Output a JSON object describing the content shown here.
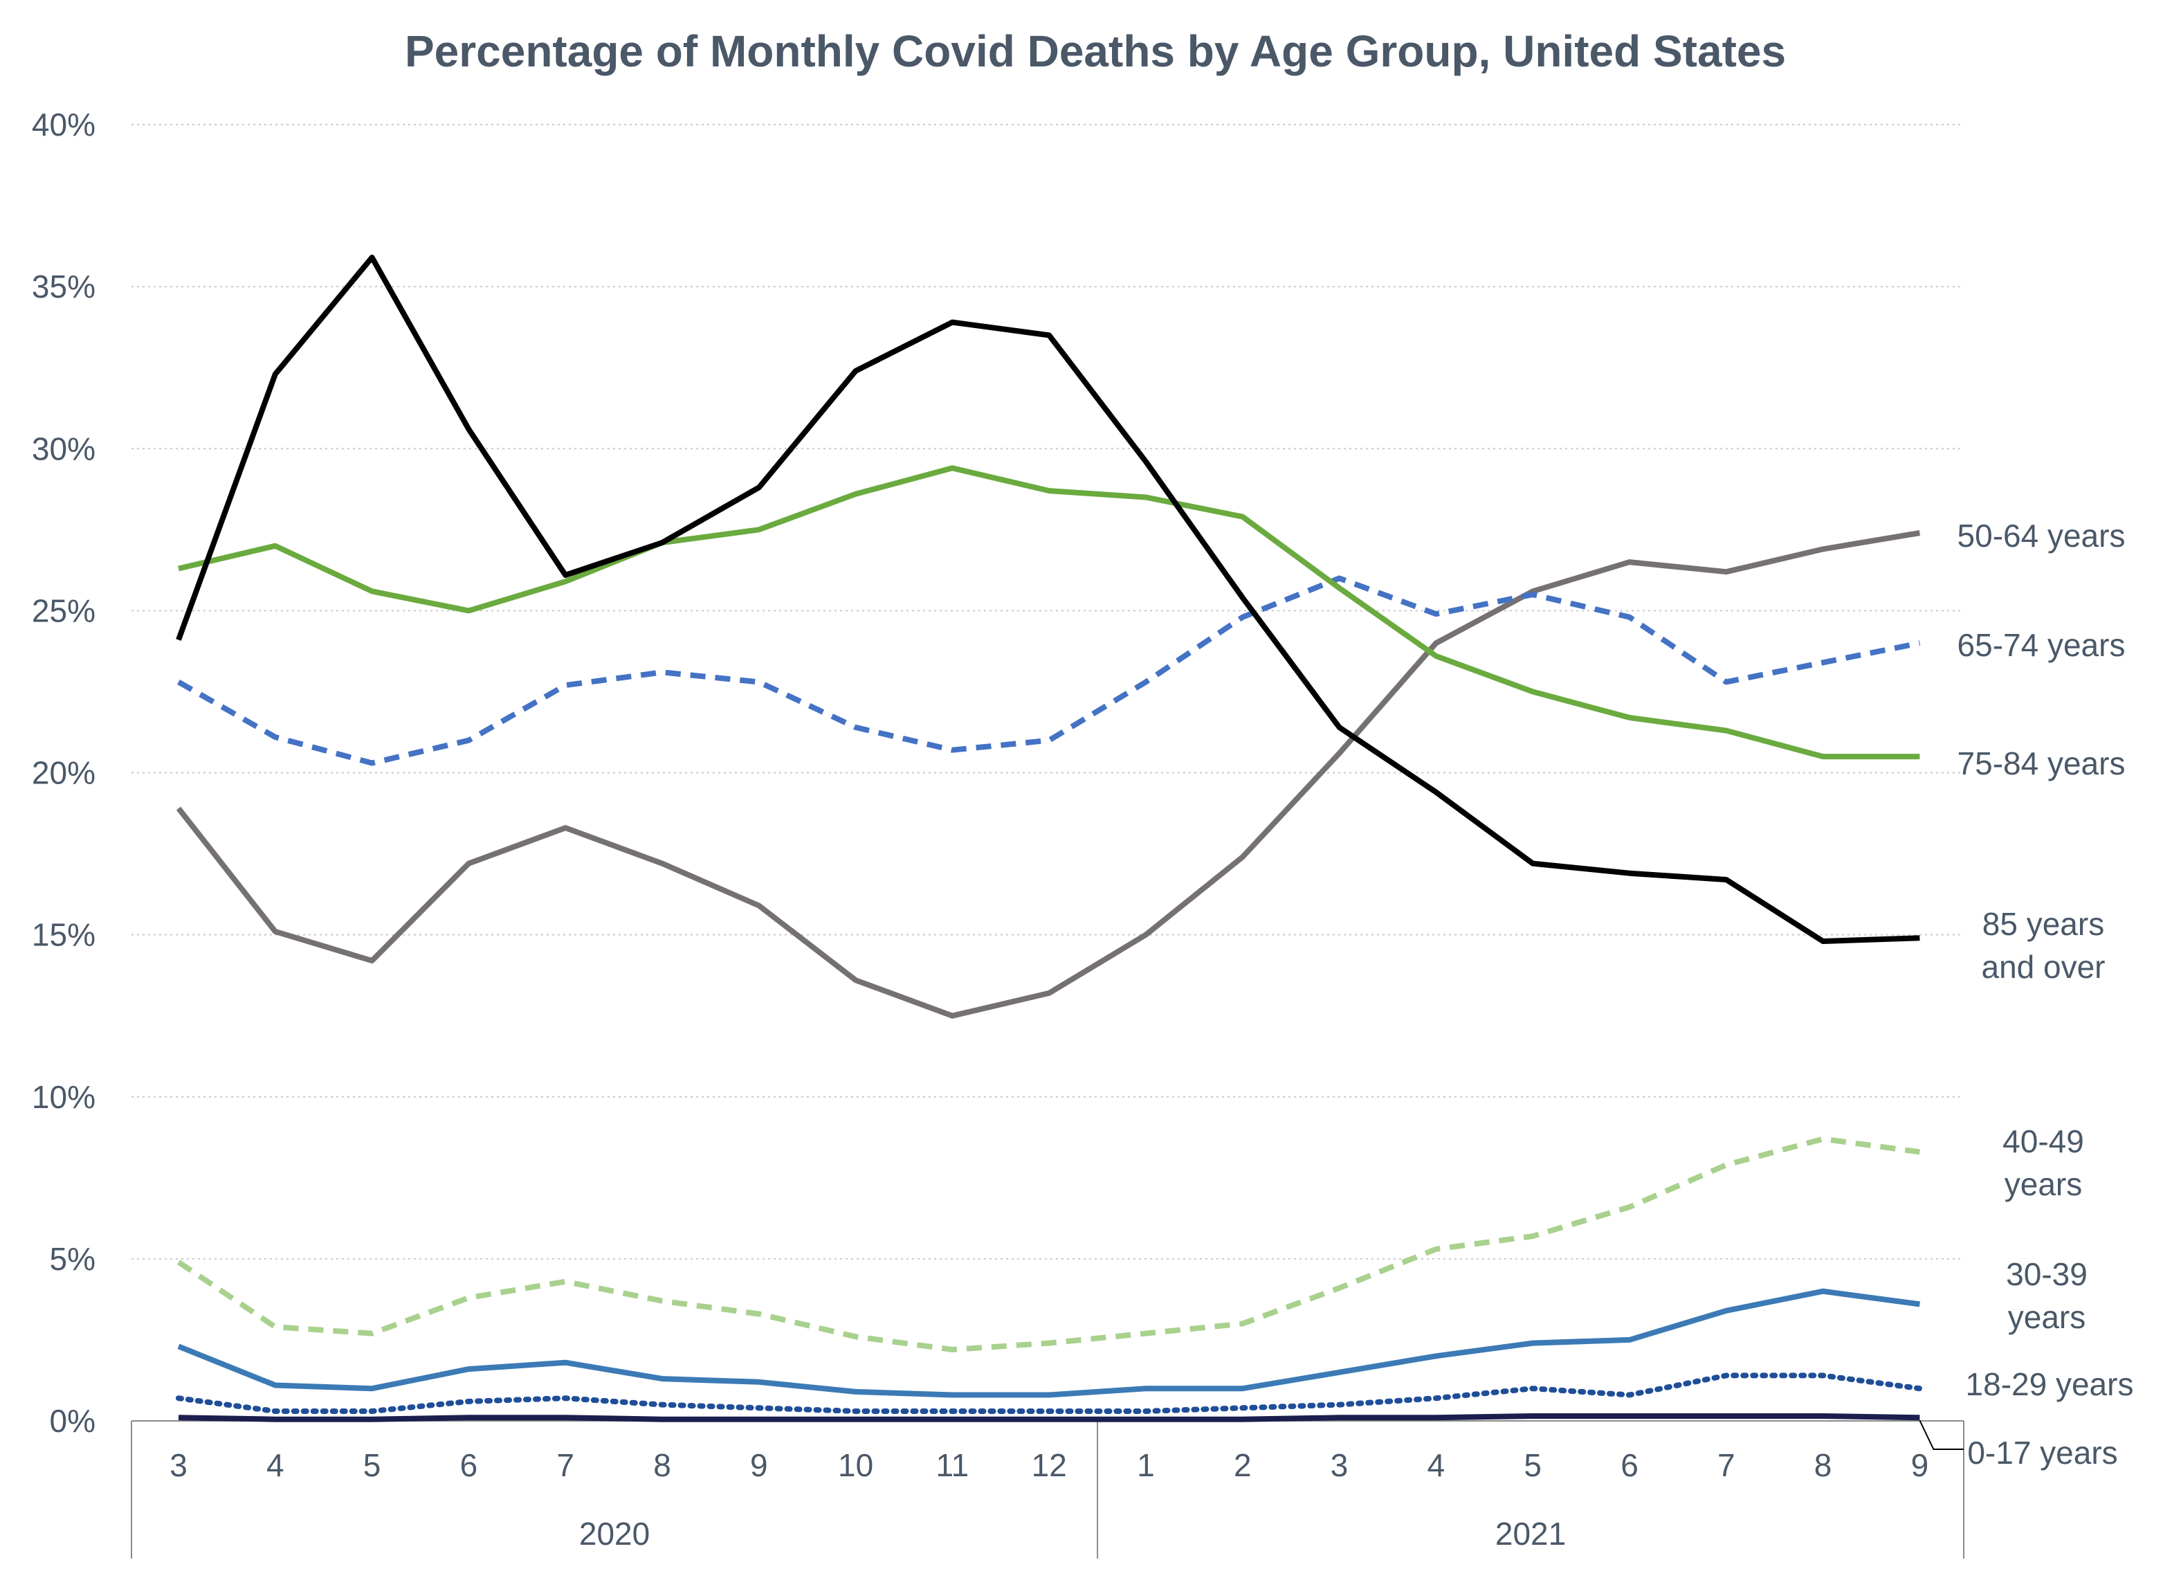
{
  "chart_data": {
    "type": "line",
    "title": "Percentage of Monthly Covid Deaths by Age Group, United States",
    "xlabel": "",
    "ylabel": "",
    "ylim": [
      0,
      40
    ],
    "yticks": [
      "0%",
      "5%",
      "10%",
      "15%",
      "20%",
      "25%",
      "30%",
      "35%",
      "40%"
    ],
    "grid": true,
    "legend": "labels at right end of lines",
    "categories": [
      "3",
      "4",
      "5",
      "6",
      "7",
      "8",
      "9",
      "10",
      "11",
      "12",
      "1",
      "2",
      "3",
      "4",
      "5",
      "6",
      "7",
      "8",
      "9"
    ],
    "year_groups": [
      {
        "label": "2020",
        "count": 10
      },
      {
        "label": "2021",
        "count": 9
      }
    ],
    "series": [
      {
        "name": "85 years and over",
        "label_lines": [
          "85 years",
          "and over"
        ],
        "color": "#000000",
        "dash": "solid",
        "values": [
          24.1,
          32.3,
          35.9,
          30.6,
          26.1,
          27.1,
          28.8,
          32.4,
          33.9,
          33.5,
          29.6,
          25.4,
          21.4,
          19.4,
          17.2,
          16.9,
          16.7,
          14.8,
          14.9
        ]
      },
      {
        "name": "75-84 years",
        "label_lines": [
          "75-84 years"
        ],
        "color": "#6aaa3f",
        "dash": "solid",
        "values": [
          26.3,
          27.0,
          25.6,
          25.0,
          25.9,
          27.1,
          27.5,
          28.6,
          29.4,
          28.7,
          28.5,
          27.9,
          25.7,
          23.6,
          22.5,
          21.7,
          21.3,
          20.5,
          20.5
        ]
      },
      {
        "name": "65-74 years",
        "label_lines": [
          "65-74 years"
        ],
        "color": "#4472c4",
        "dash": "dashed",
        "values": [
          22.8,
          21.1,
          20.3,
          21.0,
          22.7,
          23.1,
          22.8,
          21.4,
          20.7,
          21.0,
          22.8,
          24.8,
          26.0,
          24.9,
          25.5,
          24.8,
          22.8,
          23.4,
          24.0
        ]
      },
      {
        "name": "50-64 years",
        "label_lines": [
          "50-64 years"
        ],
        "color": "#767171",
        "dash": "solid",
        "values": [
          18.9,
          15.1,
          14.2,
          17.2,
          18.3,
          17.2,
          15.9,
          13.6,
          12.5,
          13.2,
          15.0,
          17.4,
          20.6,
          24.0,
          25.6,
          26.5,
          26.2,
          26.9,
          27.4
        ]
      },
      {
        "name": "40-49 years",
        "label_lines": [
          "40-49",
          "years"
        ],
        "color": "#a9d18e",
        "dash": "dashed",
        "values": [
          4.9,
          2.9,
          2.7,
          3.8,
          4.3,
          3.7,
          3.3,
          2.6,
          2.2,
          2.4,
          2.7,
          3.0,
          4.1,
          5.3,
          5.7,
          6.6,
          7.9,
          8.7,
          8.3
        ]
      },
      {
        "name": "30-39 years",
        "label_lines": [
          "30-39",
          "years"
        ],
        "color": "#3b7ab5",
        "dash": "solid",
        "values": [
          2.3,
          1.1,
          1.0,
          1.6,
          1.8,
          1.3,
          1.2,
          0.9,
          0.8,
          0.8,
          1.0,
          1.0,
          1.5,
          2.0,
          2.4,
          2.5,
          3.4,
          4.0,
          3.6
        ]
      },
      {
        "name": "18-29 years",
        "label_lines": [
          "18-29 years"
        ],
        "color": "#1f4e99",
        "dash": "dotted",
        "values": [
          0.7,
          0.3,
          0.3,
          0.6,
          0.7,
          0.5,
          0.4,
          0.3,
          0.3,
          0.3,
          0.3,
          0.4,
          0.5,
          0.7,
          1.0,
          0.8,
          1.4,
          1.4,
          1.0
        ]
      },
      {
        "name": "0-17 years",
        "label_lines": [
          "0-17 years"
        ],
        "color": "#1a1f4d",
        "dash": "solid",
        "values": [
          0.1,
          0.05,
          0.05,
          0.1,
          0.1,
          0.05,
          0.05,
          0.05,
          0.05,
          0.05,
          0.05,
          0.05,
          0.1,
          0.1,
          0.15,
          0.15,
          0.15,
          0.15,
          0.1
        ]
      }
    ]
  }
}
